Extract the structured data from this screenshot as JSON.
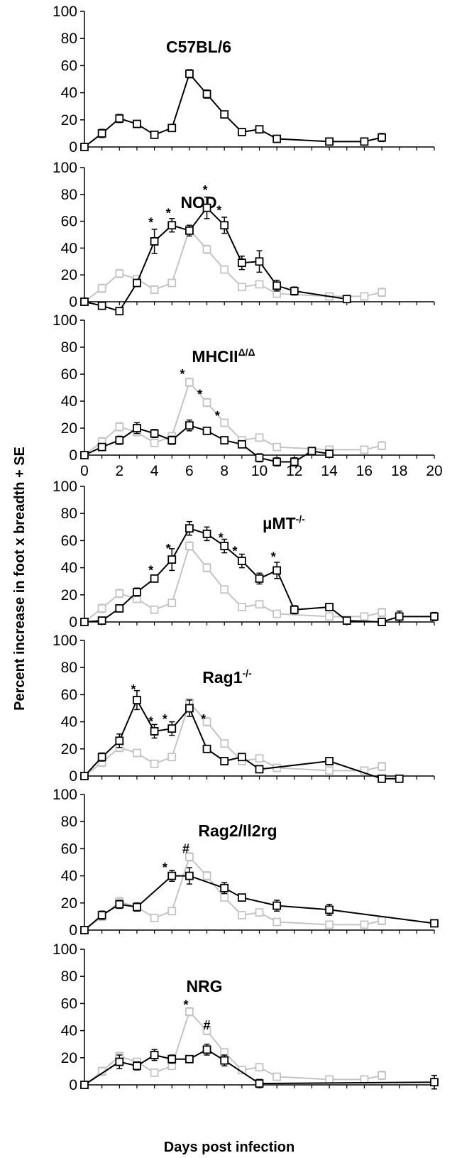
{
  "ylabel": "Percent increase in foot x breadth + SE",
  "xlabel": "Days post infection",
  "chart_data": [
    {
      "type": "line",
      "title": "C57BL/6",
      "title_sup": "",
      "ylim": [
        0,
        100
      ],
      "yticks": [
        0,
        20,
        40,
        60,
        80,
        100
      ],
      "xticks": [],
      "series": [
        {
          "role": "strain",
          "color": "#000000",
          "x": [
            0,
            1,
            2,
            3,
            4,
            5,
            6,
            7,
            8,
            9,
            10,
            11,
            14,
            16,
            17
          ],
          "y": [
            0,
            10,
            21,
            17,
            9,
            14,
            54,
            39,
            24,
            11,
            13,
            6,
            4,
            4,
            7
          ],
          "err": [
            0,
            3,
            3,
            2,
            1,
            2,
            3,
            3,
            2,
            1,
            2,
            1,
            1,
            1,
            3
          ]
        }
      ],
      "annotations": []
    },
    {
      "type": "line",
      "title": "NOD",
      "title_sup": "",
      "ylim": [
        0,
        100
      ],
      "yticks": [
        0,
        20,
        40,
        60,
        80,
        100
      ],
      "xticks": [],
      "series": [
        {
          "role": "reference",
          "color": "#c4c4c4",
          "x": [
            0,
            1,
            2,
            3,
            4,
            5,
            6,
            7,
            8,
            9,
            10,
            11,
            14,
            16,
            17
          ],
          "y": [
            0,
            10,
            21,
            17,
            9,
            14,
            54,
            39,
            24,
            11,
            13,
            6,
            4,
            4,
            7
          ],
          "err": [
            0,
            3,
            3,
            2,
            1,
            2,
            3,
            3,
            2,
            1,
            2,
            1,
            1,
            1,
            3
          ]
        },
        {
          "role": "strain",
          "color": "#000000",
          "x": [
            0,
            1,
            2,
            3,
            4,
            5,
            6,
            7,
            8,
            9,
            10,
            11,
            12,
            15
          ],
          "y": [
            0,
            -3,
            -7,
            14,
            45,
            57,
            53,
            70,
            57,
            29,
            30,
            12,
            8,
            2
          ],
          "err": [
            0,
            1,
            1,
            2,
            9,
            5,
            4,
            8,
            6,
            5,
            8,
            4,
            3,
            2
          ]
        }
      ],
      "annotations": [
        {
          "x": 3.8,
          "y": 59,
          "text": "*"
        },
        {
          "x": 4.8,
          "y": 66,
          "text": "*"
        },
        {
          "x": 6.9,
          "y": 83,
          "text": "*"
        },
        {
          "x": 7.7,
          "y": 68,
          "text": "*"
        }
      ]
    },
    {
      "type": "line",
      "title": "MHCII",
      "title_sup": "Δ/Δ",
      "ylim": [
        0,
        100
      ],
      "yticks": [
        0,
        20,
        40,
        60,
        80,
        100
      ],
      "xticks": [
        0,
        2,
        4,
        6,
        8,
        10,
        12,
        14,
        16,
        18,
        20
      ],
      "series": [
        {
          "role": "reference",
          "color": "#c4c4c4",
          "x": [
            0,
            1,
            2,
            3,
            4,
            5,
            6,
            7,
            8,
            9,
            10,
            11,
            14,
            16,
            17
          ],
          "y": [
            0,
            10,
            21,
            17,
            9,
            14,
            54,
            39,
            24,
            11,
            13,
            6,
            4,
            4,
            7
          ],
          "err": [
            0,
            3,
            3,
            2,
            1,
            2,
            3,
            3,
            2,
            1,
            2,
            1,
            1,
            1,
            3
          ]
        },
        {
          "role": "strain",
          "color": "#000000",
          "x": [
            0,
            1,
            2,
            3,
            4,
            5,
            6,
            7,
            8,
            9,
            10,
            11,
            12,
            13,
            14
          ],
          "y": [
            0,
            6,
            11,
            20,
            16,
            11,
            22,
            18,
            11,
            8,
            -2,
            -5,
            -5,
            3,
            1
          ],
          "err": [
            0,
            1,
            3,
            4,
            3,
            3,
            4,
            2,
            2,
            2,
            3,
            3,
            3,
            1,
            1
          ]
        }
      ],
      "annotations": [
        {
          "x": 5.6,
          "y": 60,
          "text": "*"
        },
        {
          "x": 6.6,
          "y": 45,
          "text": "*"
        },
        {
          "x": 7.6,
          "y": 29,
          "text": "*"
        }
      ]
    },
    {
      "type": "line",
      "title": "µMT",
      "title_sup": "-/-",
      "ylim": [
        0,
        100
      ],
      "yticks": [
        0,
        20,
        40,
        60,
        80,
        100
      ],
      "xticks": [],
      "series": [
        {
          "role": "reference",
          "color": "#c4c4c4",
          "x": [
            0,
            1,
            2,
            3,
            4,
            5,
            6,
            7,
            8,
            9,
            10,
            11,
            14,
            16,
            17
          ],
          "y": [
            0,
            10,
            21,
            17,
            9,
            14,
            56,
            40,
            24,
            11,
            13,
            6,
            4,
            4,
            7
          ],
          "err": [
            0,
            3,
            3,
            2,
            1,
            2,
            3,
            3,
            2,
            1,
            2,
            1,
            1,
            1,
            3
          ]
        },
        {
          "role": "strain",
          "color": "#000000",
          "x": [
            0,
            1,
            2,
            3,
            4,
            5,
            6,
            7,
            8,
            9,
            10,
            11,
            12,
            14,
            15,
            17,
            18,
            20
          ],
          "y": [
            0,
            1,
            10,
            22,
            32,
            46,
            69,
            65,
            56,
            45,
            32,
            38,
            9,
            11,
            1,
            0,
            4,
            4
          ],
          "err": [
            0,
            1,
            1,
            3,
            2,
            8,
            5,
            5,
            5,
            5,
            4,
            6,
            3,
            1,
            1,
            2,
            4,
            3
          ]
        }
      ],
      "annotations": [
        {
          "x": 3.8,
          "y": 38,
          "text": "*"
        },
        {
          "x": 4.8,
          "y": 54,
          "text": "*"
        },
        {
          "x": 7.8,
          "y": 62,
          "text": "*"
        },
        {
          "x": 8.6,
          "y": 52,
          "text": "*"
        },
        {
          "x": 10.8,
          "y": 48,
          "text": "*"
        }
      ]
    },
    {
      "type": "line",
      "title": "Rag1",
      "title_sup": "-/-",
      "ylim": [
        0,
        100
      ],
      "yticks": [
        0,
        20,
        40,
        60,
        80,
        100
      ],
      "xticks": [],
      "series": [
        {
          "role": "reference",
          "color": "#c4c4c4",
          "x": [
            0,
            1,
            2,
            3,
            4,
            5,
            6,
            7,
            8,
            9,
            10,
            11,
            14,
            16,
            17
          ],
          "y": [
            0,
            10,
            21,
            17,
            9,
            14,
            54,
            40,
            24,
            11,
            13,
            6,
            4,
            4,
            7
          ],
          "err": [
            0,
            3,
            3,
            2,
            1,
            2,
            3,
            3,
            2,
            1,
            2,
            1,
            1,
            1,
            3
          ]
        },
        {
          "role": "strain",
          "color": "#000000",
          "x": [
            0,
            1,
            2,
            3,
            4,
            5,
            6,
            7,
            8,
            9,
            10,
            14,
            17,
            18
          ],
          "y": [
            0,
            14,
            26,
            56,
            33,
            35,
            50,
            20,
            11,
            14,
            5,
            11,
            -2,
            -2
          ],
          "err": [
            0,
            3,
            5,
            7,
            5,
            5,
            6,
            2,
            1,
            2,
            1,
            2,
            1,
            1
          ]
        }
      ],
      "annotations": [
        {
          "x": 2.8,
          "y": 64,
          "text": "*"
        },
        {
          "x": 3.8,
          "y": 40,
          "text": "*"
        },
        {
          "x": 4.6,
          "y": 42,
          "text": "*"
        },
        {
          "x": 6.8,
          "y": 42,
          "text": "*"
        }
      ]
    },
    {
      "type": "line",
      "title": "Rag2/Il2rg",
      "title_sup": "",
      "ylim": [
        0,
        100
      ],
      "yticks": [
        0,
        20,
        40,
        60,
        80,
        100
      ],
      "xticks": [],
      "series": [
        {
          "role": "reference",
          "color": "#c4c4c4",
          "x": [
            0,
            1,
            2,
            3,
            4,
            5,
            6,
            7,
            8,
            9,
            10,
            11,
            14,
            16,
            17
          ],
          "y": [
            0,
            10,
            21,
            17,
            9,
            14,
            54,
            40,
            24,
            11,
            13,
            6,
            4,
            4,
            7
          ],
          "err": [
            0,
            3,
            3,
            2,
            1,
            2,
            3,
            3,
            2,
            1,
            2,
            1,
            1,
            1,
            3
          ]
        },
        {
          "role": "strain",
          "color": "#000000",
          "x": [
            0,
            1,
            2,
            3,
            5,
            6,
            8,
            9,
            11,
            14,
            20
          ],
          "y": [
            0,
            11,
            19,
            17,
            40,
            40,
            31,
            24,
            18,
            15,
            5
          ],
          "err": [
            0,
            3,
            3,
            3,
            4,
            6,
            4,
            1,
            4,
            4,
            1
          ]
        }
      ],
      "annotations": [
        {
          "x": 4.6,
          "y": 46,
          "text": "*"
        },
        {
          "x": 5.8,
          "y": 60,
          "text": "#"
        }
      ]
    },
    {
      "type": "line",
      "title": "NRG",
      "title_sup": "",
      "ylim": [
        0,
        100
      ],
      "yticks": [
        0,
        20,
        40,
        60,
        80,
        100
      ],
      "xticks": [],
      "series": [
        {
          "role": "reference",
          "color": "#c4c4c4",
          "x": [
            0,
            1,
            2,
            3,
            4,
            5,
            6,
            7,
            8,
            9,
            10,
            11,
            14,
            16,
            17
          ],
          "y": [
            0,
            10,
            21,
            17,
            9,
            14,
            54,
            40,
            24,
            11,
            13,
            6,
            4,
            4,
            7
          ],
          "err": [
            0,
            3,
            3,
            2,
            1,
            2,
            3,
            3,
            2,
            1,
            2,
            1,
            1,
            1,
            3
          ]
        },
        {
          "role": "strain",
          "color": "#000000",
          "x": [
            0,
            2,
            3,
            4,
            5,
            6,
            7,
            8,
            10,
            20
          ],
          "y": [
            0,
            17,
            14,
            22,
            19,
            19,
            26,
            18,
            1,
            2
          ],
          "err": [
            0,
            5,
            3,
            4,
            3,
            2,
            4,
            4,
            3,
            5
          ]
        }
      ],
      "annotations": [
        {
          "x": 5.8,
          "y": 59,
          "text": "*"
        },
        {
          "x": 7.0,
          "y": 44,
          "text": "#"
        }
      ]
    }
  ]
}
